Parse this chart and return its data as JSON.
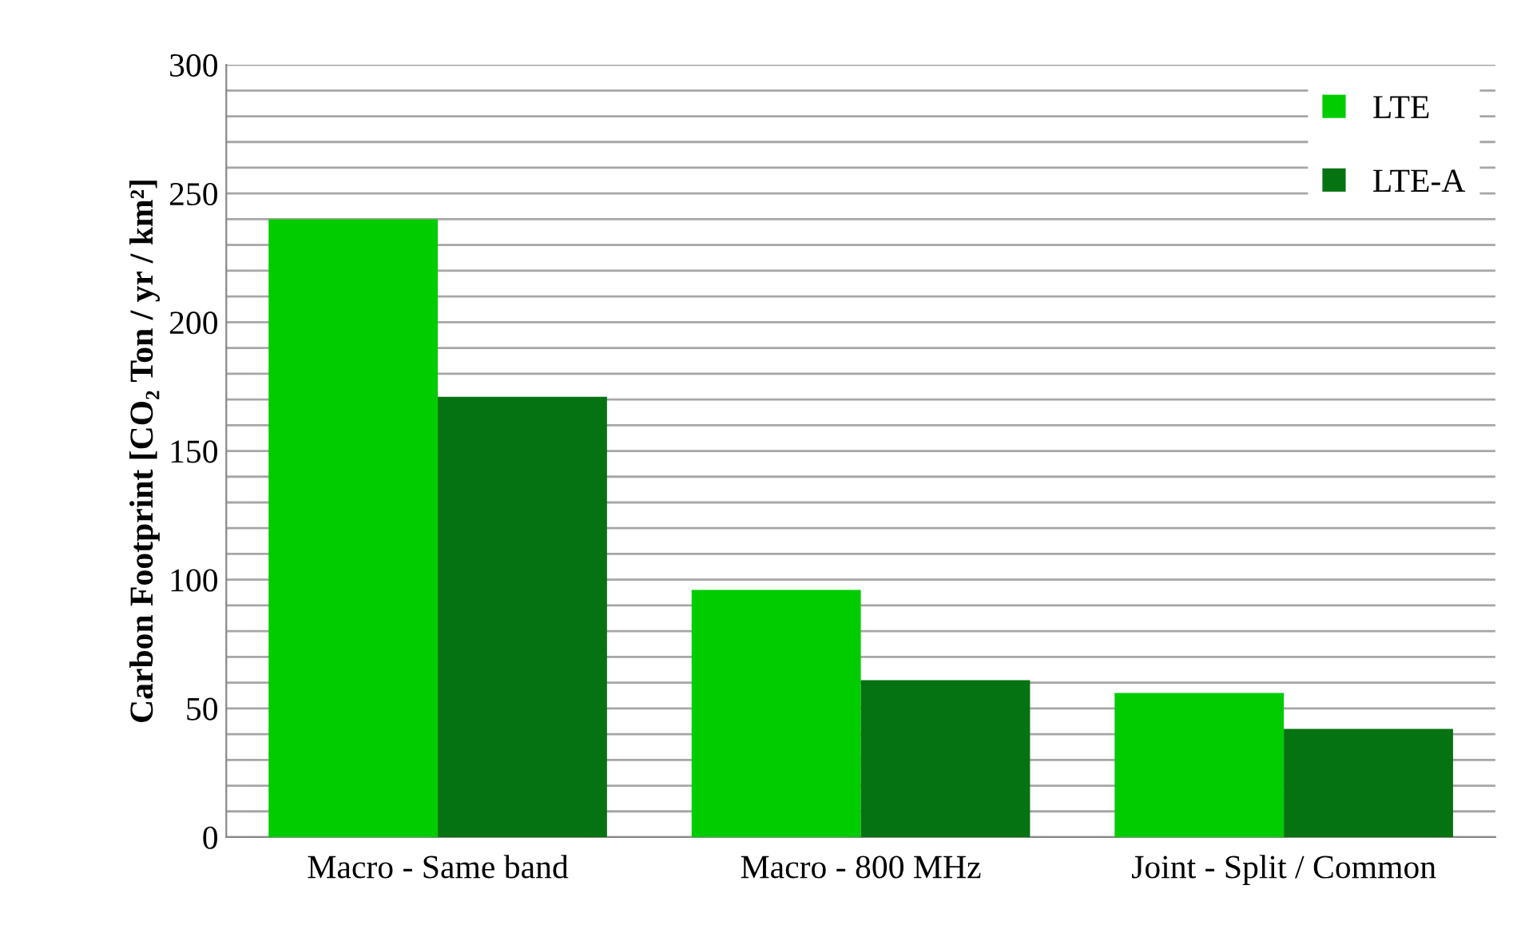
{
  "chart_data": {
    "type": "bar",
    "ylabel": "Carbon Footprint [CO₂ Ton / yr / km²]",
    "categories": [
      "Macro - Same band",
      "Macro - 800 MHz",
      "Joint - Split / Common"
    ],
    "series": [
      {
        "name": "LTE",
        "color": "#00cc00",
        "values": [
          240,
          96,
          56
        ]
      },
      {
        "name": "LTE-A",
        "color": "#067312",
        "values": [
          171,
          61,
          42
        ]
      }
    ],
    "ylim": [
      0,
      300
    ],
    "yticks": [
      0,
      {
        "value": 10,
        "label": null
      },
      {
        "value": 20,
        "label": null
      },
      {
        "value": 30,
        "label": null
      },
      {
        "value": 40,
        "label": null
      },
      50,
      {
        "value": 60,
        "label": null
      },
      {
        "value": 70,
        "label": null
      },
      {
        "value": 80,
        "label": null
      },
      {
        "value": 90,
        "label": null
      },
      100,
      {
        "value": 110,
        "label": null
      },
      {
        "value": 120,
        "label": null
      },
      {
        "value": 130,
        "label": null
      },
      {
        "value": 140,
        "label": null
      },
      150,
      {
        "value": 160,
        "label": null
      },
      {
        "value": 170,
        "label": null
      },
      {
        "value": 180,
        "label": null
      },
      {
        "value": 190,
        "label": null
      },
      200,
      {
        "value": 210,
        "label": null
      },
      {
        "value": 220,
        "label": null
      },
      {
        "value": 230,
        "label": null
      },
      {
        "value": 240,
        "label": null
      },
      250,
      {
        "value": 260,
        "label": null
      },
      {
        "value": 270,
        "label": null
      },
      {
        "value": 280,
        "label": null
      },
      {
        "value": 290,
        "label": null
      },
      300
    ],
    "grid": "y",
    "legend": "top right"
  }
}
